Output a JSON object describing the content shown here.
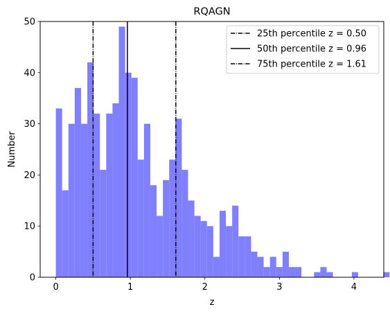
{
  "chart_data": {
    "type": "bar",
    "title": "RQAGN",
    "xlabel": "z",
    "ylabel": "Number",
    "xlim": [
      -0.21,
      4.4
    ],
    "ylim": [
      0,
      50
    ],
    "xticks": [
      0,
      1,
      2,
      3,
      4
    ],
    "yticks": [
      0,
      10,
      20,
      30,
      40,
      50
    ],
    "grid": false,
    "legend_position": "top-right",
    "bar_color": "#8080ff",
    "bin_start": 0.0,
    "bin_width": 0.0845,
    "values": [
      33,
      17,
      30,
      37,
      30,
      42,
      32,
      21,
      32,
      34,
      49,
      40,
      39,
      23,
      30,
      18,
      12,
      19,
      23,
      31,
      21,
      15,
      12,
      11,
      10,
      4,
      13,
      10,
      14,
      8,
      8,
      5,
      4,
      2,
      4,
      2,
      5,
      2,
      2,
      0,
      0,
      1,
      2,
      1,
      0,
      0,
      0,
      1,
      0,
      0,
      0,
      0,
      1
    ],
    "percentile_lines": [
      {
        "label": "25th percentile z = 0.50",
        "z": 0.5,
        "style": "dashdot"
      },
      {
        "label": "50th percentile z = 0.96",
        "z": 0.96,
        "style": "solid"
      },
      {
        "label": "75th percentile z = 1.61",
        "z": 1.61,
        "style": "dashdot"
      }
    ]
  }
}
